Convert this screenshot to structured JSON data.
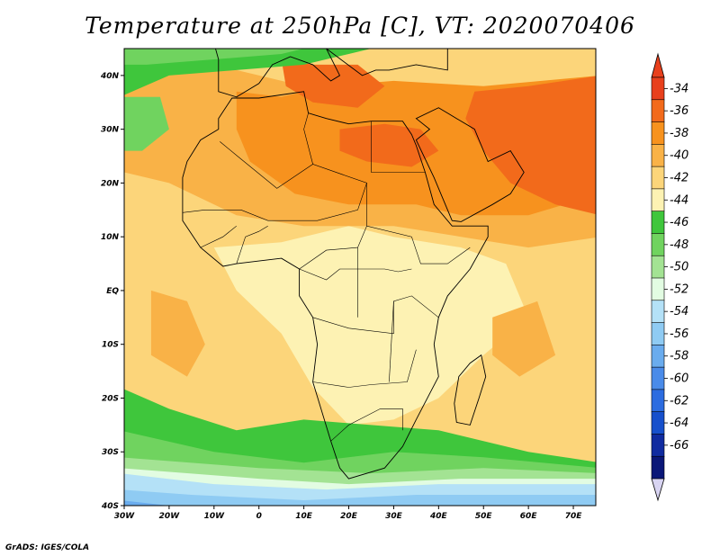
{
  "title": "Temperature at 250hPa [C], VT: 2020070406",
  "credit": "GrADS: IGES/COLA",
  "map": {
    "lon_range": [
      -30,
      75
    ],
    "lat_range": [
      -40,
      45
    ],
    "lon_ticks": [
      {
        "value": -30,
        "label": "30W"
      },
      {
        "value": -20,
        "label": "20W"
      },
      {
        "value": -10,
        "label": "10W"
      },
      {
        "value": 0,
        "label": "0"
      },
      {
        "value": 10,
        "label": "10E"
      },
      {
        "value": 20,
        "label": "20E"
      },
      {
        "value": 30,
        "label": "30E"
      },
      {
        "value": 40,
        "label": "40E"
      },
      {
        "value": 50,
        "label": "50E"
      },
      {
        "value": 60,
        "label": "60E"
      },
      {
        "value": 70,
        "label": "70E"
      }
    ],
    "lat_ticks": [
      {
        "value": 40,
        "label": "40N"
      },
      {
        "value": 30,
        "label": "30N"
      },
      {
        "value": 20,
        "label": "20N"
      },
      {
        "value": 10,
        "label": "10N"
      },
      {
        "value": 0,
        "label": "EQ"
      },
      {
        "value": -10,
        "label": "10S"
      },
      {
        "value": -20,
        "label": "20S"
      },
      {
        "value": -30,
        "label": "30S"
      },
      {
        "value": -40,
        "label": "40S"
      }
    ]
  },
  "colorbar": {
    "levels": [
      -34,
      -36,
      -38,
      -40,
      -42,
      -44,
      -46,
      -48,
      -50,
      -52,
      -54,
      -56,
      -58,
      -60,
      -62,
      -64,
      -66
    ],
    "colors": [
      "#e8401c",
      "#f26a1b",
      "#f7921e",
      "#f9b247",
      "#fcd57a",
      "#fdf2b3",
      "#3fc63c",
      "#70d35f",
      "#a3e393",
      "#e2fce2",
      "#b4e1f7",
      "#8fcbf3",
      "#6aacee",
      "#4a8be9",
      "#2c6ce0",
      "#1750cc",
      "#102ba0",
      "#0a1778"
    ],
    "top_arrow_color": "#e8401c",
    "bottom_arrow_color": "#d8d4f2"
  },
  "fill_colors": {
    "ocean_warm": "#fcd57a",
    "warm": "#f9b247",
    "hot": "#f7921e",
    "hottest": "#f26a1b",
    "cooler": "#fdf2b3",
    "green_dark": "#3fc63c",
    "green_mid": "#70d35f",
    "green_light": "#a3e393",
    "cyan": "#e2fce2",
    "blue_light": "#b4e1f7",
    "blue_mid": "#8fcbf3",
    "blue": "#6aacee"
  }
}
